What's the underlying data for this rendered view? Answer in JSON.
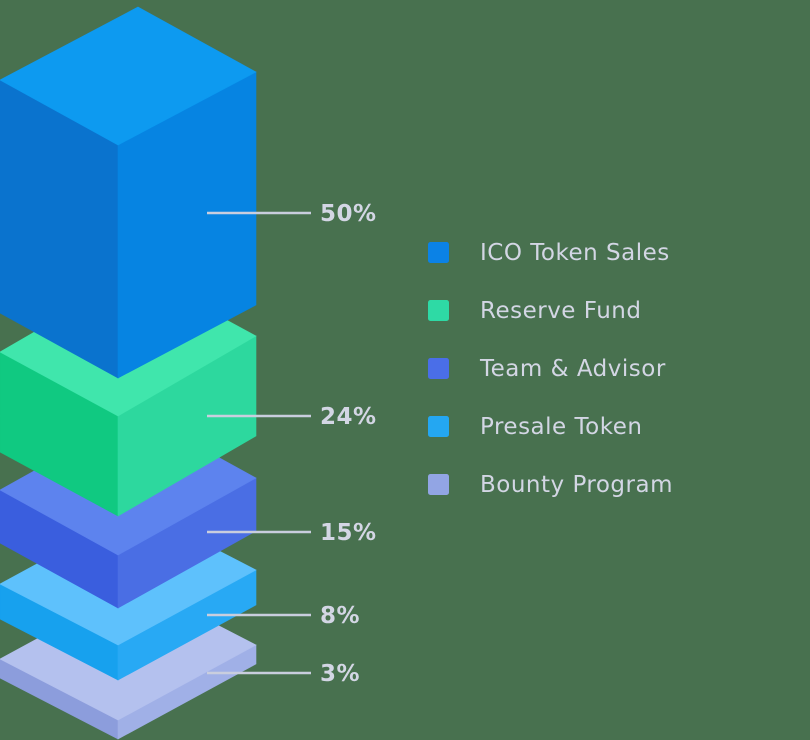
{
  "background_color": "#48714f",
  "chart_data": {
    "type": "stacked-isometric-blocks",
    "title": "",
    "legend_position": "right",
    "label_line_color": "#c9cede",
    "label_text_color": "#d3d6e4",
    "series": [
      {
        "label": "ICO Token Sales",
        "value": 50,
        "pct_label": "50%",
        "colors": {
          "top": "#0d9af0",
          "left": "#0a73ce",
          "right": "#0684e2",
          "legend": "#0b82e6"
        }
      },
      {
        "label": "Reserve Fund",
        "value": 24,
        "pct_label": "24%",
        "colors": {
          "top": "#40e6ac",
          "left": "#10c981",
          "right": "#2dd89e",
          "legend": "#2edaa5"
        }
      },
      {
        "label": "Team & Advisor",
        "value": 15,
        "pct_label": "15%",
        "colors": {
          "top": "#5d83ee",
          "left": "#3a5ede",
          "right": "#4a6ee4",
          "legend": "#4a6ee8"
        }
      },
      {
        "label": "Presale Token",
        "value": 8,
        "pct_label": "8%",
        "colors": {
          "top": "#5ec1fc",
          "left": "#17a1ee",
          "right": "#28a9f4",
          "legend": "#24a7f2"
        }
      },
      {
        "label": "Bounty Program",
        "value": 3,
        "pct_label": "3%",
        "colors": {
          "top": "#b4c1ee",
          "left": "#8c9ddc",
          "right": "#a0b0e7",
          "legend": "#92a5e4"
        }
      }
    ]
  }
}
